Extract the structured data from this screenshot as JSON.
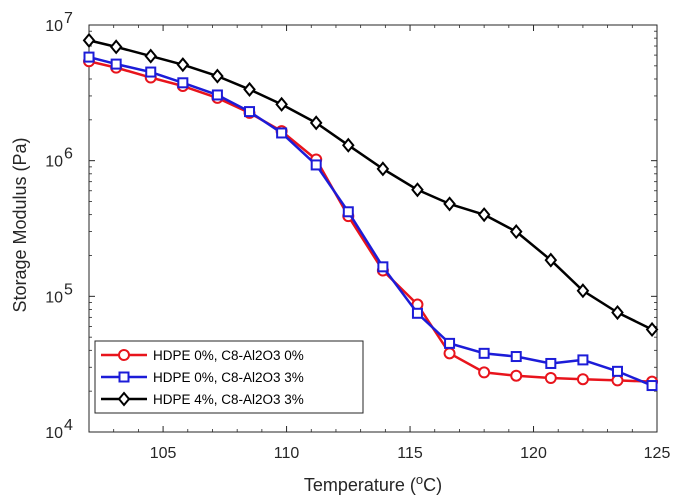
{
  "chart_data": {
    "type": "line",
    "xlabel": "Temperature",
    "xlabel_unit": "(°C)",
    "ylabel": "Storage Modulus (Pa)",
    "xlim": [
      102,
      125
    ],
    "ylim": [
      10000,
      10000000
    ],
    "yscale": "log",
    "x_ticks": [
      105,
      110,
      115,
      120,
      125
    ],
    "y_ticks": [
      {
        "value": 10000,
        "base": "10",
        "exp": "4"
      },
      {
        "value": 100000,
        "base": "10",
        "exp": "5"
      },
      {
        "value": 1000000,
        "base": "10",
        "exp": "6"
      },
      {
        "value": 10000000,
        "base": "10",
        "exp": "7"
      }
    ],
    "grid": false,
    "legend_position": "bottom-left",
    "series": [
      {
        "name": "HDPE 0%, C8-Al2O3 0%",
        "color": "#e8141c",
        "marker": "circle",
        "x": [
          102.0,
          103.1,
          104.5,
          105.8,
          107.2,
          108.5,
          109.8,
          111.2,
          112.5,
          113.9,
          115.3,
          116.6,
          118.0,
          119.3,
          120.7,
          122.0,
          123.4,
          124.8
        ],
        "y": [
          5400000,
          4850000,
          4100000,
          3550000,
          2900000,
          2250000,
          1650000,
          1020000,
          390000,
          155000,
          87000,
          38000,
          27500,
          26000,
          25000,
          24500,
          24000,
          23500
        ]
      },
      {
        "name": "HDPE 0%, C8-Al2O3 3%",
        "color": "#1c1cd8",
        "marker": "square",
        "x": [
          102.0,
          103.1,
          104.5,
          105.8,
          107.2,
          108.5,
          109.8,
          111.2,
          112.5,
          113.9,
          115.3,
          116.6,
          118.0,
          119.3,
          120.7,
          122.0,
          123.4,
          124.8
        ],
        "y": [
          5800000,
          5150000,
          4500000,
          3750000,
          3050000,
          2300000,
          1600000,
          930000,
          420000,
          165000,
          75000,
          45000,
          38000,
          36000,
          32000,
          34000,
          28000,
          22000
        ]
      },
      {
        "name": "HDPE 4%, C8-Al2O3 3%",
        "color": "#000000",
        "marker": "diamond",
        "x": [
          102.0,
          103.1,
          104.5,
          105.8,
          107.2,
          108.5,
          109.8,
          111.2,
          112.5,
          113.9,
          115.3,
          116.6,
          118.0,
          119.3,
          120.7,
          122.0,
          123.4,
          124.8
        ],
        "y": [
          7700000,
          6900000,
          5900000,
          5100000,
          4200000,
          3350000,
          2600000,
          1900000,
          1300000,
          870000,
          610000,
          480000,
          400000,
          300000,
          185000,
          110000,
          76000,
          57000
        ]
      }
    ]
  }
}
